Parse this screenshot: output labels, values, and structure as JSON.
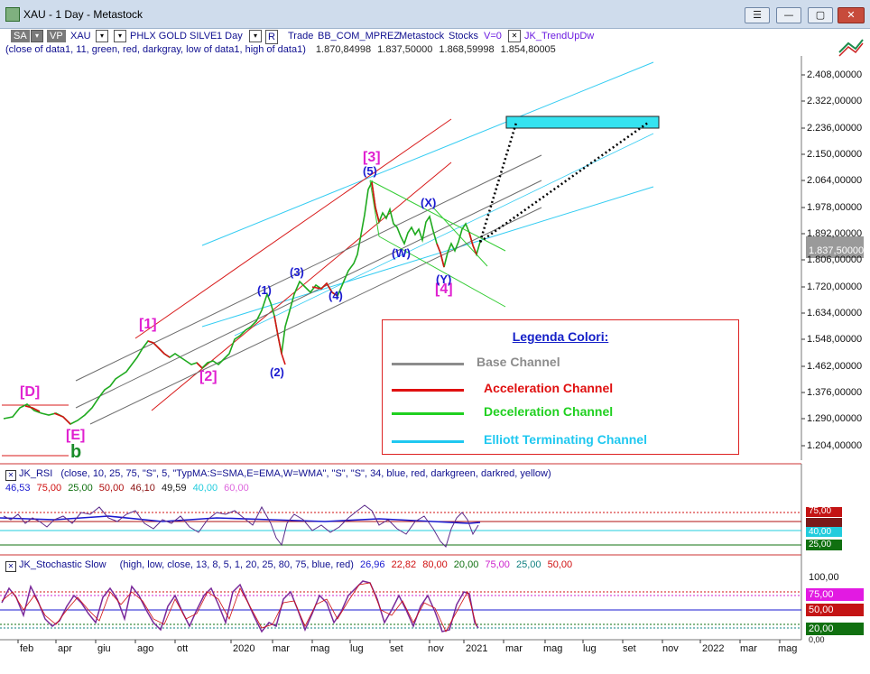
{
  "window": {
    "title": "XAU - 1 Day - Metastock",
    "buttons": {
      "settings": "☰",
      "minimize": "—",
      "maximize": "▢",
      "close": "✕"
    }
  },
  "toolbar": {
    "sa": "SA",
    "vp": "VP",
    "symbol": "XAU",
    "name": "PHLX GOLD SILVE",
    "interval": "1 Day",
    "r_label": "R",
    "trade": "Trade",
    "source": "BB_COM_MPREZ",
    "app": "Metastock",
    "market": "Stocks",
    "v_label": "V=0",
    "indicator": "JK_TrendUpDw"
  },
  "price_legend": {
    "formula": "(close of data1,  11,  green,  red,  darkgray,  low of data1,  high of data1)",
    "values": [
      "1.870,84998",
      "1.837,50000",
      "1.868,59998",
      "1.854,80005"
    ]
  },
  "price_axis": {
    "ticks": [
      "2.408,00000",
      "2.322,00000",
      "2.236,00000",
      "2.150,00000",
      "2.064,00000",
      "1.978,00000",
      "1.892,00000",
      "1.806,00000",
      "1.720,00000",
      "1.634,00000",
      "1.548,00000",
      "1.462,00000",
      "1.376,00000",
      "1.290,00000",
      "1.204,00000"
    ],
    "last_value": "1.837,50000"
  },
  "wave_labels": {
    "D": "[D]",
    "E": "[E]",
    "b": "b",
    "w1": "[1]",
    "w2": "[2]",
    "w3": "[3]",
    "w4": "[4]",
    "s1": "(1)",
    "s2": "(2)",
    "s3": "(3)",
    "s4": "(4)",
    "s5": "(5)",
    "W": "(W)",
    "X": "(X)",
    "Y": "(Y)"
  },
  "legend_box": {
    "title": "Legenda Colori:",
    "items": [
      {
        "label": "Base Channel",
        "color": "#8c8c8c"
      },
      {
        "label": "Acceleration Channel",
        "color": "#e01010"
      },
      {
        "label": "Deceleration Channel",
        "color": "#20d020"
      },
      {
        "label": "Elliott Terminating Channel",
        "color": "#20c8f0"
      }
    ]
  },
  "rsi": {
    "label": "JK_RSI",
    "params": "(close,  10,  25,  75,  \"S\",  5,  \"TypMA:S=SMA,E=EMA,W=WMA\",  \"S\",  \"S\",  34,  blue,  red,  darkgreen,  darkred,  yellow)",
    "values": [
      {
        "v": "46,53",
        "c": "#1a1ad0"
      },
      {
        "v": "75,00",
        "c": "#d01010"
      },
      {
        "v": "25,00",
        "c": "#107010"
      },
      {
        "v": "50,00",
        "c": "#b01010"
      },
      {
        "v": "46,10",
        "c": "#8b1010"
      },
      {
        "v": "49,59",
        "c": "#1a1a1a"
      },
      {
        "v": "40,00",
        "c": "#22ccdd"
      },
      {
        "v": "60,00",
        "c": "#dd66dd"
      }
    ],
    "axis": {
      "v75": "75,00",
      "v40": "40,00",
      "v25": "25,00"
    }
  },
  "stoch": {
    "label": "JK_Stochastic Slow",
    "params": "(high,  low,  close,  13,  8,  5,  1,  20,  25,  80,  75,  blue,  red)",
    "values": [
      {
        "v": "26,96",
        "c": "#1a1ad0"
      },
      {
        "v": "22,82",
        "c": "#d01010"
      },
      {
        "v": "80,00",
        "c": "#d01010"
      },
      {
        "v": "20,00",
        "c": "#107010"
      },
      {
        "v": "75,00",
        "c": "#cc22cc"
      },
      {
        "v": "25,00",
        "c": "#108080"
      },
      {
        "v": "50,00",
        "c": "#d01010"
      }
    ],
    "axis": {
      "v100": "100,00",
      "v75": "75,00",
      "v50": "50,00",
      "v20": "20,00",
      "v0": "0,00"
    }
  },
  "time_axis": [
    "feb",
    "apr",
    "giu",
    "ago",
    "ott",
    "2020",
    "mar",
    "mag",
    "lug",
    "set",
    "nov",
    "2021",
    "mar",
    "mag",
    "lug",
    "set",
    "nov",
    "2022",
    "mar",
    "mag"
  ],
  "colors": {
    "titlebar": "#cfdcec",
    "target": "#35e3f0",
    "price_up": "#1faa1f",
    "price_down": "#d41414"
  }
}
